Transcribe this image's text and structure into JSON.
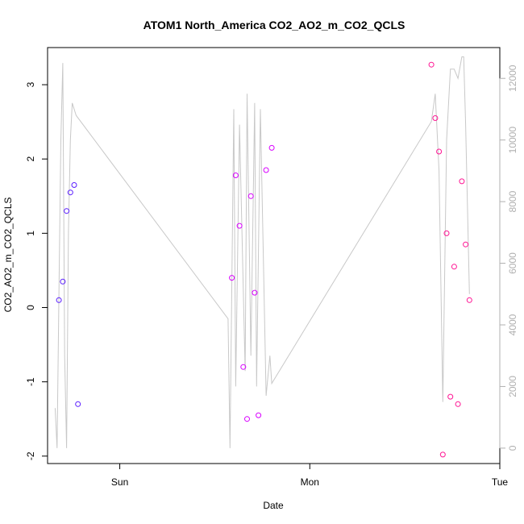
{
  "chart_data": {
    "type": "scatter",
    "title": "ATOM1 North_America CO2_AO2_m_CO2_QCLS",
    "xlabel": "Date",
    "ylabel": "CO2_AO2_m_CO2_QCLS",
    "x_ticks": [
      "Sun",
      "Mon",
      "Tue"
    ],
    "y_ticks": [
      "-2",
      "-1",
      "0",
      "1",
      "2",
      "3"
    ],
    "y_range": [
      -2.1,
      3.5
    ],
    "y2_ticks": [
      "0",
      "2000",
      "4000",
      "6000",
      "8000",
      "10000",
      "12000"
    ],
    "y2_range": [
      -500,
      13000
    ],
    "x_range_days": [
      -0.38,
      2.0
    ],
    "grid": false,
    "point_colors": [
      "#5a1dff",
      "#d800ff",
      "#ff1493"
    ],
    "altitude_line_color": "#c8c8c8",
    "series": [
      {
        "type": "scatter",
        "x": [
          -0.32,
          -0.3,
          -0.28,
          -0.26,
          -0.24,
          -0.22
        ],
        "y": [
          0.1,
          0.35,
          1.3,
          1.55,
          1.65,
          -1.3
        ]
      },
      {
        "type": "scatter",
        "x": [
          0.59,
          0.61,
          0.63,
          0.65,
          0.67,
          0.69,
          0.71,
          0.73,
          0.77,
          0.8
        ],
        "y": [
          0.4,
          1.78,
          1.1,
          -0.8,
          -1.5,
          1.5,
          0.2,
          -1.45,
          1.85,
          2.15
        ]
      },
      {
        "type": "scatter",
        "x": [
          1.64,
          1.66,
          1.68,
          1.7,
          1.72,
          1.74,
          1.76,
          1.78,
          1.8,
          1.82,
          1.84
        ],
        "y": [
          3.27,
          2.55,
          2.1,
          -1.98,
          1.0,
          -1.2,
          0.55,
          -1.3,
          1.7,
          0.85,
          0.1
        ]
      },
      {
        "type": "line",
        "name": "altitude",
        "x": [
          -0.34,
          -0.33,
          -0.32,
          -0.31,
          -0.3,
          -0.29,
          -0.28,
          -0.27,
          -0.26,
          -0.25,
          -0.24,
          -0.23,
          0.57,
          0.58,
          0.6,
          0.61,
          0.63,
          0.66,
          0.67,
          0.69,
          0.71,
          0.72,
          0.74,
          0.77,
          0.79,
          0.8,
          1.64,
          1.66,
          1.68,
          1.7,
          1.72,
          1.74,
          1.76,
          1.78,
          1.8,
          1.81,
          1.82,
          1.84
        ],
        "y": [
          1300,
          0,
          5000,
          10000,
          12500,
          3000,
          0,
          7000,
          10000,
          11200,
          11000,
          10800,
          4200,
          0,
          11000,
          2000,
          10500,
          2500,
          11500,
          3000,
          11200,
          2000,
          11000,
          1700,
          3000,
          2100,
          10600,
          11500,
          9000,
          1500,
          10000,
          12300,
          12300,
          12000,
          12700,
          12700,
          10500,
          5000
        ]
      }
    ]
  }
}
